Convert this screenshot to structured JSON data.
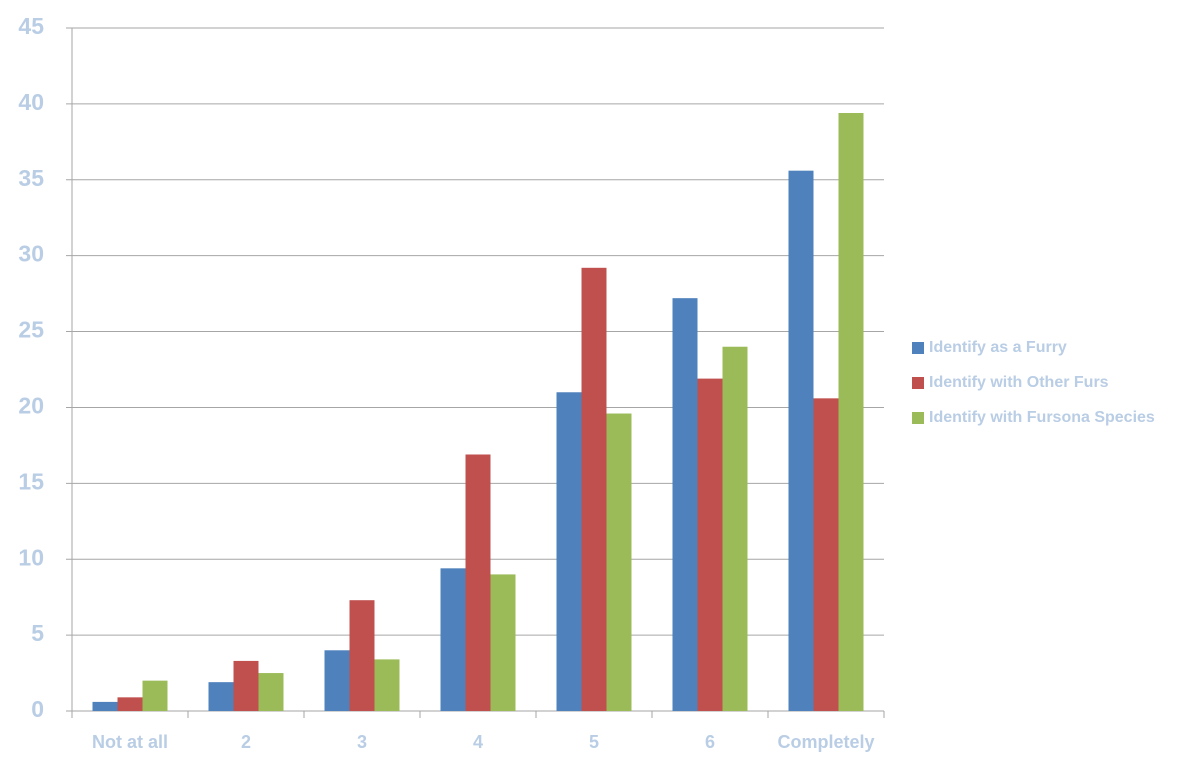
{
  "chart_data": {
    "type": "bar",
    "categories": [
      "Not at all",
      "2",
      "3",
      "4",
      "5",
      "6",
      "Completely"
    ],
    "series": [
      {
        "name": "Identify as a Furry",
        "color": "#4f81bd",
        "values": [
          0.6,
          1.9,
          4.0,
          9.4,
          21.0,
          27.2,
          35.6
        ]
      },
      {
        "name": "Identify with Other Furs",
        "color": "#c0504d",
        "values": [
          0.9,
          3.3,
          7.3,
          16.9,
          29.2,
          21.9,
          20.6
        ]
      },
      {
        "name": "Identify with Fursona Species",
        "color": "#9bbb59",
        "values": [
          2.0,
          2.5,
          3.4,
          9.0,
          19.6,
          24.0,
          39.4
        ]
      }
    ],
    "ylim": [
      0,
      45
    ],
    "yticks": [
      0,
      5,
      10,
      15,
      20,
      25,
      30,
      35,
      40,
      45
    ],
    "grid": true,
    "legend": "right"
  }
}
